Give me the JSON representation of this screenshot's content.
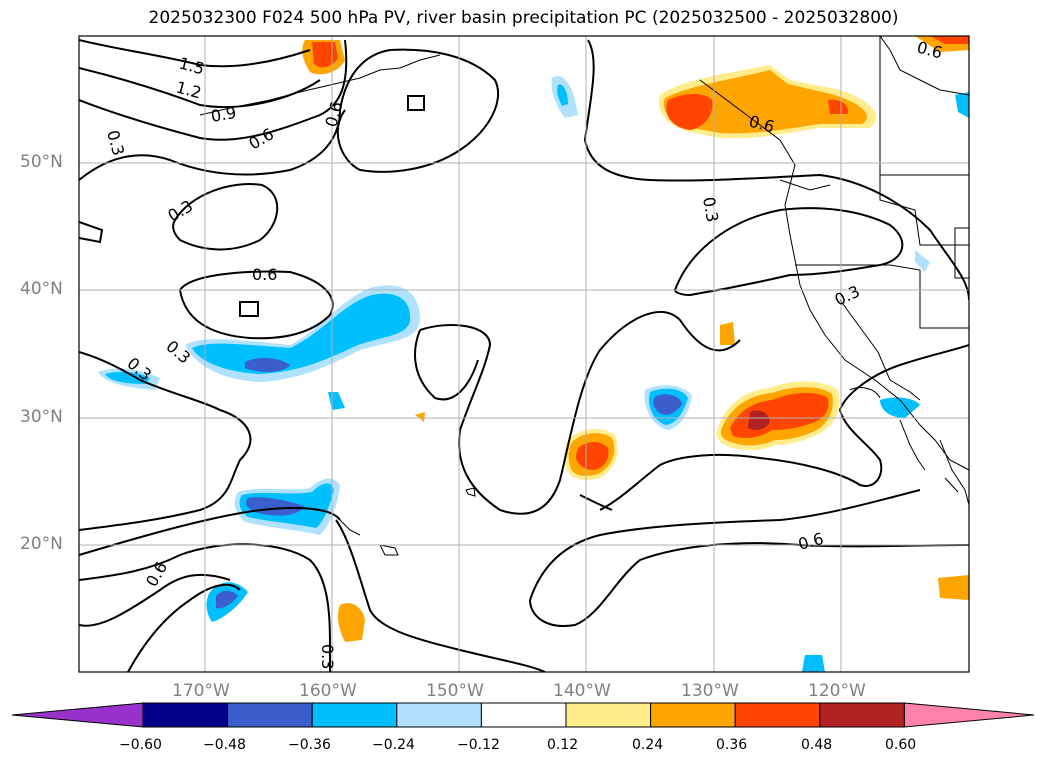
{
  "title": "2025032300 F024 500 hPa PV, river basin precipitation PC (2025032500 - 2025032800)",
  "lat_ticks": [
    "50°N",
    "40°N",
    "30°N",
    "20°N"
  ],
  "lon_ticks": [
    "170°W",
    "160°W",
    "150°W",
    "140°W",
    "130°W",
    "120°W"
  ],
  "contour_labels": [
    "1.5",
    "1.2",
    "0.9",
    "0.6",
    "0.6",
    "0.6",
    "0.3",
    "0.6",
    "0.3",
    "0.3",
    "0.3",
    "0.3",
    "0.3",
    "0.6",
    "0.3",
    "0.6",
    "0.6"
  ],
  "colorbar": {
    "labels": [
      "−0.60",
      "−0.48",
      "−0.36",
      "−0.24",
      "−0.12",
      "0.12",
      "0.24",
      "0.36",
      "0.48",
      "0.60"
    ],
    "colors": [
      "#9932cc",
      "#00008b",
      "#3a5fcd",
      "#00bfff",
      "#b0e2ff",
      "#ffffff",
      "#ffec8b",
      "#ffa500",
      "#ff4500",
      "#b22222",
      "#ff82ab"
    ]
  },
  "colors": {
    "land_outline": "#000000",
    "grid": "#b0b0b0",
    "tick_text": "#808080"
  }
}
